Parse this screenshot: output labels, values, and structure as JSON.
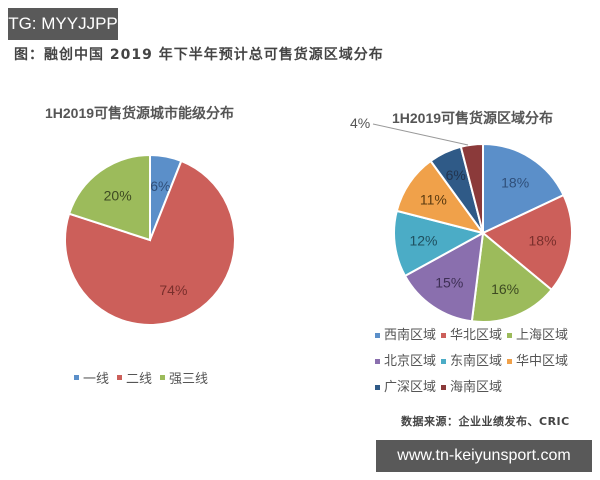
{
  "watermark_top": "TG: MYYJJPP",
  "main_title": "图：融创中国 2019 年下半年预计总可售货源区域分布",
  "source": "数据来源：企业业绩发布、CRIC",
  "watermark_bottom": "www.tn-keiyunsport.com",
  "chart_data": [
    {
      "type": "pie",
      "title": "1H2019可售货源城市能级分布",
      "categories": [
        "一线",
        "二线",
        "强三线"
      ],
      "values": [
        6,
        74,
        20
      ],
      "labels": [
        "6%",
        "74%",
        "20%"
      ],
      "colors": [
        "#5b8fc9",
        "#cc5f5a",
        "#9cbb5b"
      ],
      "legend_position": "bottom"
    },
    {
      "type": "pie",
      "title": "1H2019可售货源区域分布",
      "categories": [
        "西南区域",
        "华北区域",
        "上海区域",
        "北京区域",
        "东南区域",
        "华中区域",
        "广深区域",
        "海南区域"
      ],
      "values": [
        18,
        18,
        16,
        15,
        12,
        11,
        6,
        4
      ],
      "labels": [
        "18%",
        "18%",
        "16%",
        "15%",
        "12%",
        "11%",
        "6%",
        "4%"
      ],
      "colors": [
        "#5b8fc9",
        "#cc5f5a",
        "#9cbb5b",
        "#8a6fae",
        "#4bacc6",
        "#f0a14a",
        "#2f5a87",
        "#8b3a3a"
      ],
      "legend_position": "bottom"
    }
  ]
}
